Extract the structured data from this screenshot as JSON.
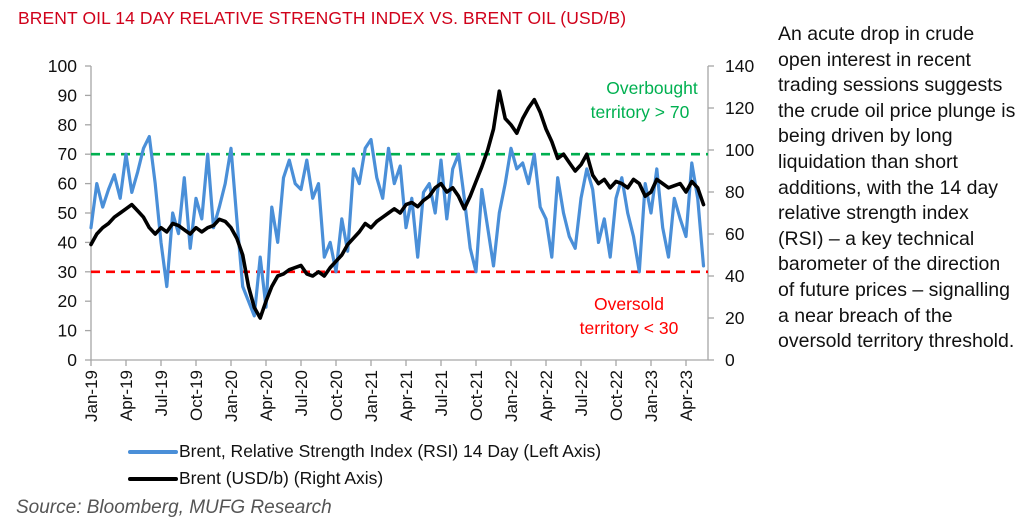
{
  "title": "BRENT OIL 14 DAY RELATIVE STRENGTH INDEX VS. BRENT OIL (USD/B)",
  "side_text": "An acute drop in crude open interest in recent trading sessions suggests the crude oil price plunge is being driven by long liquidation than short additions, with the 14 day relative strength index (RSI) – a key technical barometer of the direction of future prices – signalling a near breach of the oversold territory threshold.",
  "source": "Source: Bloomberg, MUFG Research",
  "colors": {
    "title": "#d0021b",
    "rsi": "#4a8fd8",
    "brent": "#000000",
    "overbought": "#00b050",
    "oversold": "#ff0000",
    "axis": "#a6a6a6"
  },
  "chart_data": {
    "type": "line",
    "title": "BRENT OIL 14 DAY RELATIVE STRENGTH INDEX VS. BRENT OIL (USD/B)",
    "xlabel": "",
    "ylabel_left": "",
    "ylabel_right": "",
    "x_tick_labels": [
      "Jan-19",
      "Apr-19",
      "Jul-19",
      "Oct-19",
      "Jan-20",
      "Apr-20",
      "Jul-20",
      "Oct-20",
      "Jan-21",
      "Apr-21",
      "Jul-21",
      "Oct-21",
      "Jan-22",
      "Apr-22",
      "Jul-22",
      "Oct-22",
      "Jan-23",
      "Apr-23"
    ],
    "y_left": {
      "range": [
        0,
        100
      ],
      "ticks": [
        0,
        10,
        20,
        30,
        40,
        50,
        60,
        70,
        80,
        90,
        100
      ]
    },
    "y_right": {
      "range": [
        0,
        140
      ],
      "ticks": [
        0,
        20,
        40,
        60,
        80,
        100,
        120,
        140
      ]
    },
    "grid": false,
    "legend_position": "bottom",
    "annotations": [
      {
        "text_line1": "Overbought",
        "text_line2": "territory > 70",
        "color": "#00b050"
      },
      {
        "text_line1": "Oversold",
        "text_line2": "territory < 30",
        "color": "#ff0000"
      }
    ],
    "reference_lines": [
      {
        "axis": "left",
        "value": 70,
        "color": "#00b050",
        "style": "dashed"
      },
      {
        "axis": "left",
        "value": 30,
        "color": "#ff0000",
        "style": "dashed"
      }
    ],
    "x_months_from_jan19": [
      0,
      0.5,
      1,
      1.5,
      2,
      2.5,
      3,
      3.5,
      4,
      4.5,
      5,
      5.5,
      6,
      6.5,
      7,
      7.5,
      8,
      8.5,
      9,
      9.5,
      10,
      10.5,
      11,
      11.5,
      12,
      12.5,
      13,
      13.5,
      14,
      14.5,
      15,
      15.5,
      16,
      16.5,
      17,
      17.5,
      18,
      18.5,
      19,
      19.5,
      20,
      20.5,
      21,
      21.5,
      22,
      22.5,
      23,
      23.5,
      24,
      24.5,
      25,
      25.5,
      26,
      26.5,
      27,
      27.5,
      28,
      28.5,
      29,
      29.5,
      30,
      30.5,
      31,
      31.5,
      32,
      32.5,
      33,
      33.5,
      34,
      34.5,
      35,
      35.5,
      36,
      36.5,
      37,
      37.5,
      38,
      38.5,
      39,
      39.5,
      40,
      40.5,
      41,
      41.5,
      42,
      42.5,
      43,
      43.5,
      44,
      44.5,
      45,
      45.5,
      46,
      46.5,
      47,
      47.5,
      48,
      48.5,
      49,
      49.5,
      50,
      50.5,
      51,
      51.5,
      52,
      52.5
    ],
    "series": [
      {
        "name": "Brent, Relative Strength Index (RSI) 14 Day (Left Axis)",
        "axis": "left",
        "color": "#4a8fd8",
        "values": [
          45,
          60,
          52,
          58,
          63,
          55,
          70,
          57,
          64,
          72,
          76,
          60,
          40,
          25,
          50,
          43,
          62,
          38,
          55,
          48,
          70,
          45,
          52,
          60,
          72,
          48,
          25,
          20,
          15,
          35,
          18,
          52,
          40,
          62,
          68,
          60,
          58,
          68,
          55,
          60,
          35,
          40,
          30,
          48,
          37,
          65,
          60,
          72,
          75,
          62,
          55,
          72,
          60,
          66,
          45,
          55,
          35,
          57,
          60,
          50,
          68,
          48,
          65,
          70,
          55,
          38,
          30,
          58,
          45,
          32,
          50,
          60,
          72,
          65,
          67,
          60,
          70,
          52,
          48,
          35,
          62,
          50,
          42,
          38,
          55,
          65,
          58,
          40,
          48,
          35,
          55,
          62,
          50,
          42,
          30,
          60,
          50,
          65,
          45,
          35,
          55,
          48,
          42,
          67,
          55,
          32
        ]
      },
      {
        "name": "Brent (USD/b) (Right Axis)",
        "axis": "right",
        "color": "#000000",
        "values": [
          55,
          60,
          63,
          65,
          68,
          70,
          72,
          74,
          71,
          68,
          63,
          60,
          63,
          61,
          65,
          64,
          62,
          60,
          63,
          61,
          63,
          64,
          67,
          66,
          63,
          58,
          50,
          35,
          25,
          20,
          28,
          35,
          40,
          41,
          43,
          44,
          45,
          41,
          40,
          42,
          40,
          44,
          47,
          50,
          55,
          58,
          61,
          65,
          63,
          66,
          68,
          70,
          72,
          70,
          74,
          75,
          73,
          76,
          78,
          82,
          84,
          80,
          82,
          78,
          72,
          78,
          85,
          92,
          100,
          110,
          128,
          115,
          112,
          108,
          115,
          120,
          124,
          118,
          110,
          104,
          96,
          98,
          94,
          90,
          93,
          98,
          88,
          84,
          86,
          82,
          85,
          84,
          82,
          86,
          84,
          78,
          80,
          86,
          84,
          82,
          83,
          84,
          80,
          85,
          82,
          74
        ]
      }
    ]
  },
  "legend": [
    {
      "label": "Brent, Relative Strength Index (RSI) 14 Day (Left Axis)",
      "color": "#4a8fd8"
    },
    {
      "label": "Brent (USD/b) (Right Axis)",
      "color": "#000000"
    }
  ]
}
